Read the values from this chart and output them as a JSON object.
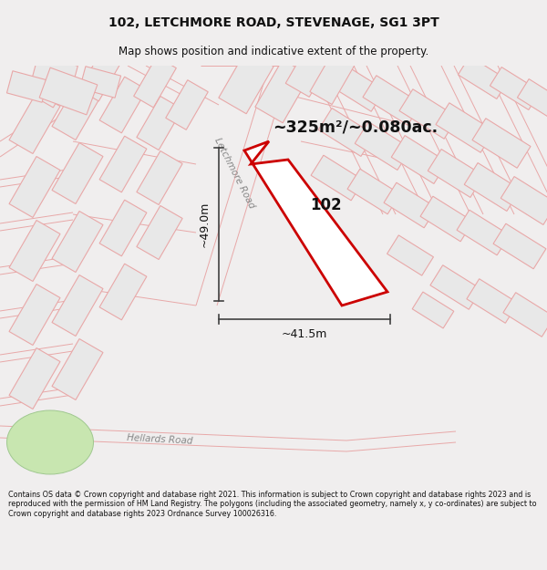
{
  "title_line1": "102, LETCHMORE ROAD, STEVENAGE, SG1 3PT",
  "title_line2": "Map shows position and indicative extent of the property.",
  "area_label": "~325m²/~0.080ac.",
  "plot_number": "102",
  "dim_height": "~49.0m",
  "dim_width": "~41.5m",
  "road_label1": "Letchmore Road",
  "road_label2": "Hellards Road",
  "footer_text": "Contains OS data © Crown copyright and database right 2021. This information is subject to Crown copyright and database rights 2023 and is reproduced with the permission of HM Land Registry. The polygons (including the associated geometry, namely x, y co-ordinates) are subject to Crown copyright and database rights 2023 Ordnance Survey 100026316.",
  "bg_color": "#f0eeee",
  "map_bg_color": "#ffffff",
  "plot_color": "#cc0000",
  "plot_fill": "#ffffff",
  "road_line_color": "#e8a8a8",
  "building_fill": "#e8e8e8",
  "building_stroke": "#e8a8a8",
  "dim_line_color": "#404040",
  "header_bg": "#f0eeee",
  "footer_bg": "#f0eeee"
}
